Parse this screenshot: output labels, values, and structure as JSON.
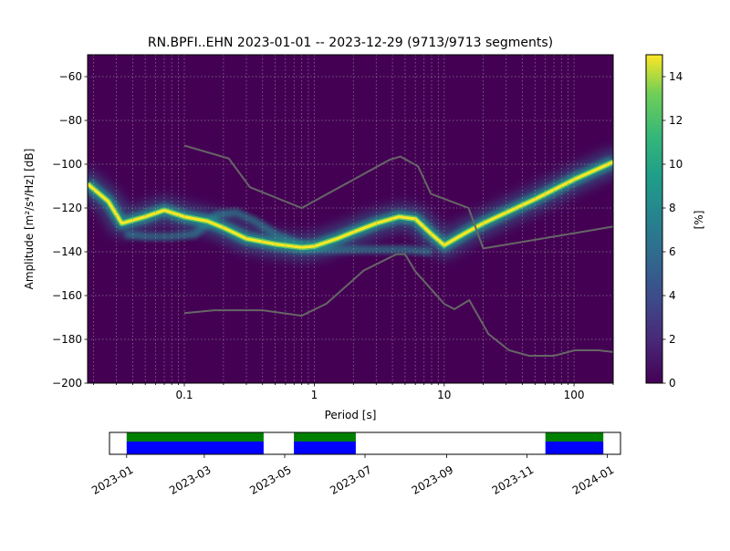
{
  "chart_data": [
    {
      "type": "heatmap",
      "title": "RN.BPFI..EHN   2023-01-01 -- 2023-12-29  (9713/9713 segments)",
      "xlabel": "Period [s]",
      "ylabel": "Amplitude [m²/s⁴/Hz] [dB]",
      "x_scale": "log",
      "xlim": [
        0.018,
        200
      ],
      "ylim": [
        -200,
        -50
      ],
      "grid": true,
      "x_ticks": [
        {
          "value": 0.1,
          "label": "0.1"
        },
        {
          "value": 1,
          "label": "1"
        },
        {
          "value": 10,
          "label": "10"
        },
        {
          "value": 100,
          "label": "100"
        }
      ],
      "y_ticks": [
        {
          "value": -60,
          "label": "−60"
        },
        {
          "value": -80,
          "label": "−80"
        },
        {
          "value": -100,
          "label": "−100"
        },
        {
          "value": -120,
          "label": "−120"
        },
        {
          "value": -140,
          "label": "−140"
        },
        {
          "value": -160,
          "label": "−160"
        },
        {
          "value": -180,
          "label": "−180"
        },
        {
          "value": -200,
          "label": "−200"
        }
      ],
      "colorbar": {
        "label": "[%]",
        "range": [
          0,
          15
        ],
        "ticks": [
          {
            "value": 0,
            "label": "0"
          },
          {
            "value": 2,
            "label": "2"
          },
          {
            "value": 4,
            "label": "4"
          },
          {
            "value": 6,
            "label": "6"
          },
          {
            "value": 8,
            "label": "8"
          },
          {
            "value": 10,
            "label": "10"
          },
          {
            "value": 12,
            "label": "12"
          },
          {
            "value": 14,
            "label": "14"
          }
        ]
      },
      "colors": {
        "low": "#440154",
        "mid1": "#3b528b",
        "mid2": "#21918c",
        "mid3": "#5ec962",
        "high": "#fde725",
        "model_line": "#666666"
      },
      "high_noise_model": {
        "period": [
          0.1,
          0.22,
          0.32,
          0.8,
          3.8,
          4.6,
          6.3,
          7.9,
          15.4,
          20,
          200
        ],
        "db": [
          -91.5,
          -97.4,
          -110.5,
          -120,
          -98,
          -96.5,
          -101,
          -113.5,
          -120,
          -138.5,
          -128.5
        ]
      },
      "low_noise_model": {
        "period": [
          0.1,
          0.17,
          0.4,
          0.8,
          1.24,
          2.4,
          4.3,
          5,
          6,
          10,
          12,
          15.6,
          21.9,
          31.6,
          45,
          70,
          101,
          154,
          200
        ],
        "db": [
          -168,
          -166.7,
          -166.7,
          -169.2,
          -163.7,
          -148.6,
          -141.1,
          -141.1,
          -149,
          -163.8,
          -166.2,
          -162.1,
          -177.5,
          -185,
          -187.5,
          -187.5,
          -185,
          -185,
          -185.8
        ]
      },
      "mode_curve": {
        "period": [
          0.018,
          0.026,
          0.033,
          0.05,
          0.07,
          0.1,
          0.15,
          0.2,
          0.3,
          0.5,
          0.8,
          1.0,
          1.5,
          2.0,
          3.0,
          4.5,
          6.0,
          8.0,
          10,
          15,
          20,
          50,
          100,
          200
        ],
        "db": [
          -109,
          -117,
          -127,
          -124,
          -121,
          -124,
          -126,
          -129,
          -134,
          -136.5,
          -138,
          -137.5,
          -134,
          -131,
          -127,
          -124,
          -125,
          -132,
          -137,
          -131,
          -127,
          -116,
          -107,
          -99
        ]
      },
      "secondary_curve": {
        "period": [
          0.035,
          0.05,
          0.08,
          0.12,
          0.18,
          0.25,
          0.35,
          0.5,
          0.8,
          1.2,
          2,
          3,
          5,
          8
        ],
        "db": [
          -132,
          -133,
          -133,
          -132,
          -123,
          -122,
          -126,
          -132,
          -137,
          -139,
          -139,
          -139,
          -139,
          -140
        ]
      }
    },
    {
      "type": "timeline",
      "x_ticks": [
        "2023-01",
        "2023-03",
        "2023-05",
        "2023-07",
        "2023-09",
        "2023-11",
        "2024-01"
      ],
      "segments": [
        {
          "start": "2023-01-01",
          "end": "2023-04-15"
        },
        {
          "start": "2023-05-08",
          "end": "2023-06-24"
        },
        {
          "start": "2023-11-15",
          "end": "2023-12-29"
        }
      ],
      "colors": {
        "upper": "#008000",
        "lower": "#0000ff"
      }
    }
  ]
}
